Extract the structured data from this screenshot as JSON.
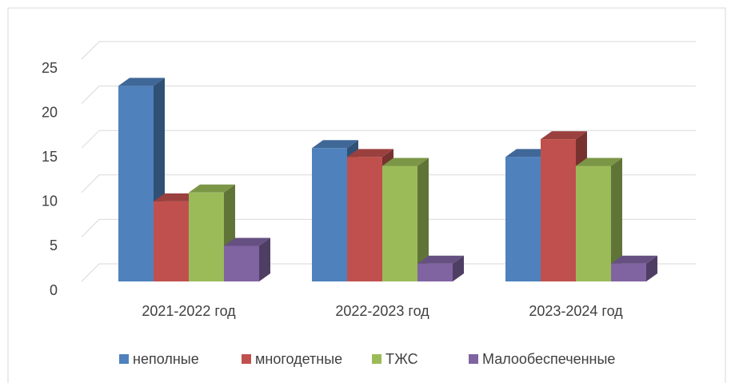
{
  "chart_data": {
    "type": "bar3d",
    "categories": [
      "2021-2022 год",
      "2022-2023 год",
      "2023-2024 год"
    ],
    "series": [
      {
        "name": "неполные",
        "color": "#4f81bd",
        "values": [
          22,
          15,
          14
        ]
      },
      {
        "name": "многодетные",
        "color": "#c0504d",
        "values": [
          9,
          14,
          16
        ]
      },
      {
        "name": "ТЖС",
        "color": "#9bbb59",
        "values": [
          10,
          13,
          13
        ]
      },
      {
        "name": "Малообеспеченные",
        "color": "#8064a2",
        "values": [
          4,
          2,
          2
        ]
      }
    ],
    "ylim": [
      0,
      25
    ],
    "yticks": [
      0,
      5,
      10,
      15,
      20,
      25
    ],
    "grid": true,
    "legend": "bottom"
  }
}
